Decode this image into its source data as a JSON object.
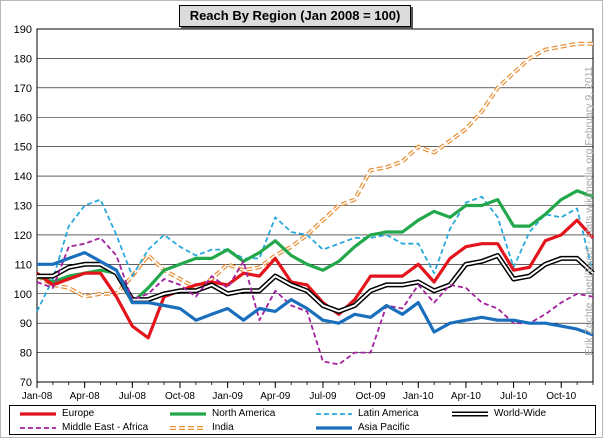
{
  "chart_data": {
    "type": "line",
    "title": "Reach By Region  (Jan 2008 = 100)",
    "ylim": [
      70,
      190
    ],
    "yticks": [
      70,
      80,
      90,
      100,
      110,
      120,
      130,
      140,
      150,
      160,
      170,
      180,
      190
    ],
    "xticks": [
      {
        "label": "Jan-08",
        "month": 1
      },
      {
        "label": "Apr-08",
        "month": 4
      },
      {
        "label": "Jul-08",
        "month": 7
      },
      {
        "label": "Oct-08",
        "month": 10
      },
      {
        "label": "Jan-09",
        "month": 13
      },
      {
        "label": "Apr-09",
        "month": 16
      },
      {
        "label": "Jul-09",
        "month": 19
      },
      {
        "label": "Oct-09",
        "month": 22
      },
      {
        "label": "Jan-10",
        "month": 25
      },
      {
        "label": "Apr-10",
        "month": 28
      },
      {
        "label": "Jul-10",
        "month": 31
      },
      {
        "label": "Oct-10",
        "month": 34
      }
    ],
    "x": [
      "Jan-08",
      "Feb-08",
      "Mar-08",
      "Apr-08",
      "May-08",
      "Jun-08",
      "Jul-08",
      "Aug-08",
      "Sep-08",
      "Oct-08",
      "Nov-08",
      "Dec-08",
      "Jan-09",
      "Feb-09",
      "Mar-09",
      "Apr-09",
      "May-09",
      "Jun-09",
      "Jul-09",
      "Aug-09",
      "Sep-09",
      "Oct-09",
      "Nov-09",
      "Dec-09",
      "Jan-10",
      "Feb-10",
      "Mar-10",
      "Apr-10",
      "May-10",
      "Jun-10",
      "Jul-10",
      "Aug-10",
      "Sep-10",
      "Oct-10",
      "Nov-10",
      "Dec-10"
    ],
    "grid": true,
    "legend_position": "bottom",
    "series": [
      {
        "name": "India",
        "color": "#e8903a",
        "style": "double-dashed",
        "values": [
          106,
          103,
          102,
          99,
          100,
          100,
          106,
          113,
          108,
          105,
          102,
          105,
          110,
          108,
          109,
          113,
          116,
          120,
          125,
          130,
          132,
          142,
          143,
          145,
          150,
          148,
          152,
          156,
          162,
          170,
          175,
          180,
          183,
          184,
          185,
          185
        ]
      },
      {
        "name": "Latin America",
        "color": "#29a8dc",
        "style": "dashed",
        "values": [
          94,
          105,
          123,
          130,
          132,
          120,
          106,
          115,
          120,
          116,
          113,
          115,
          115,
          112,
          112,
          126,
          121,
          120,
          115,
          117,
          119,
          119,
          120,
          117,
          117,
          107,
          122,
          131,
          133,
          126,
          109,
          121,
          127,
          126,
          129,
          107
        ]
      },
      {
        "name": "North America",
        "color": "#22a84a",
        "style": "solid",
        "values": [
          106,
          104,
          106,
          107,
          108,
          107,
          97,
          102,
          108,
          110,
          112,
          112,
          115,
          111,
          114,
          118,
          113,
          110,
          108,
          111,
          116,
          120,
          121,
          121,
          125,
          128,
          126,
          130,
          130,
          132,
          123,
          123,
          127,
          132,
          135,
          133
        ]
      },
      {
        "name": "Europe",
        "color": "#e3141c",
        "style": "solid",
        "values": [
          107,
          103,
          105,
          107,
          107,
          99,
          89,
          85,
          99,
          101,
          103,
          104,
          103,
          107,
          106,
          112,
          104,
          103,
          97,
          93,
          98,
          106,
          106,
          106,
          110,
          104,
          112,
          116,
          117,
          117,
          108,
          109,
          118,
          120,
          125,
          119
        ]
      },
      {
        "name": "World-Wide",
        "color": "#000000",
        "style": "double",
        "values": [
          106,
          106,
          109,
          110,
          110,
          107,
          98,
          98,
          100,
          101,
          101,
          103,
          100,
          101,
          101,
          106,
          103,
          101,
          96,
          94,
          96,
          101,
          103,
          103,
          104,
          101,
          103,
          110,
          111,
          113,
          105,
          106,
          110,
          112,
          112,
          107
        ]
      },
      {
        "name": "Middle East - Africa",
        "color": "#a3209e",
        "style": "dashed",
        "values": [
          104,
          102,
          116,
          117,
          119,
          113,
          98,
          100,
          105,
          103,
          99,
          106,
          102,
          111,
          91,
          101,
          96,
          94,
          77,
          76,
          80,
          80,
          96,
          95,
          103,
          97,
          103,
          102,
          97,
          95,
          90,
          90,
          93,
          97,
          100,
          99
        ]
      },
      {
        "name": "Asia Pacific",
        "color": "#1a6fbd",
        "style": "solid",
        "values": [
          110,
          110,
          112,
          114,
          111,
          108,
          97,
          97,
          96,
          95,
          91,
          93,
          95,
          91,
          95,
          94,
          98,
          95,
          91,
          90,
          93,
          92,
          96,
          93,
          97,
          87,
          90,
          91,
          92,
          91,
          91,
          90,
          90,
          89,
          88,
          86
        ]
      }
    ],
    "legend": [
      {
        "name": "Europe",
        "color": "#e3141c",
        "style": "solid"
      },
      {
        "name": "North America",
        "color": "#22a84a",
        "style": "solid"
      },
      {
        "name": "Latin America",
        "color": "#29a8dc",
        "style": "dashed"
      },
      {
        "name": "World-Wide",
        "color": "#000000",
        "style": "double"
      },
      {
        "name": "Middle East - Africa",
        "color": "#a3209e",
        "style": "dashed"
      },
      {
        "name": "India",
        "color": "#e8903a",
        "style": "double-dashed"
      },
      {
        "name": "Asia Pacific",
        "color": "#1a6fbd",
        "style": "solid"
      }
    ]
  },
  "credit": "Erik Zachte - perl/Excel - stats.wikimedia.org          February 9, 2011"
}
